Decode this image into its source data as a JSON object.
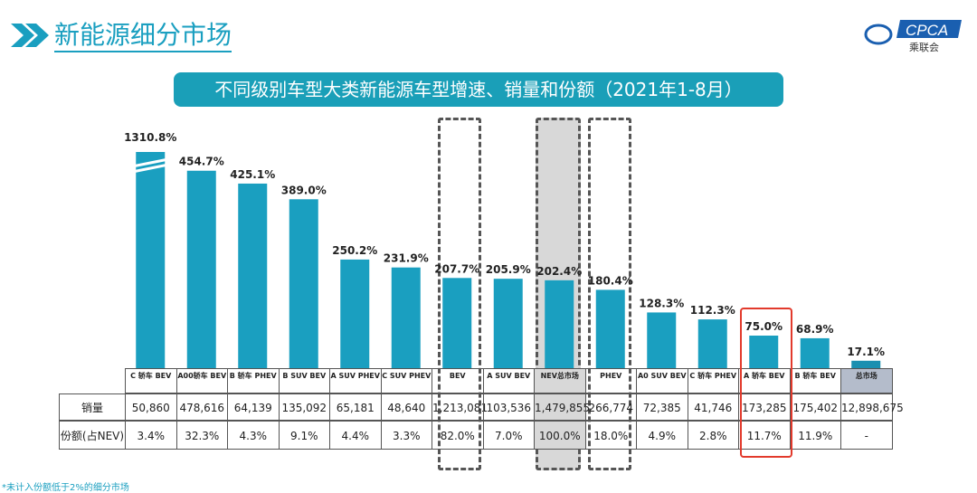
{
  "header": {
    "title": "新能源细分市场",
    "logo_text": "CPCA",
    "logo_sub": "乘联会"
  },
  "chart_data": {
    "type": "bar",
    "title": "不同级别车型大类新能源车型增速、销量和份额（2021年1-8月）",
    "categories": [
      "C 轿车 BEV",
      "A00轿车 BEV",
      "B 轿车 PHEV",
      "B SUV BEV",
      "A SUV PHEV",
      "C SUV PHEV",
      "BEV",
      "A SUV BEV",
      "NEV总市场",
      "PHEV",
      "A0 SUV BEV",
      "C 轿车 PHEV",
      "A 轿车 BEV",
      "B 轿车 BEV",
      "总市场"
    ],
    "values": [
      1310.8,
      454.7,
      425.1,
      389.0,
      250.2,
      231.9,
      207.7,
      205.9,
      202.4,
      180.4,
      128.3,
      112.3,
      75.0,
      68.9,
      17.1
    ],
    "value_labels": [
      "1310.8%",
      "454.7%",
      "425.1%",
      "389.0%",
      "250.2%",
      "231.9%",
      "207.7%",
      "205.9%",
      "202.4%",
      "180.4%",
      "128.3%",
      "112.3%",
      "75.0%",
      "68.9%",
      "17.1%"
    ],
    "broken_axis_bars": [
      0
    ],
    "bar_color": "#1a9fc0",
    "highlight_color": "#e23a2c",
    "table": {
      "row_labels": [
        "销量",
        "份额(占NEV)"
      ],
      "sales": [
        "50,860",
        "478,616",
        "64,139",
        "135,092",
        "65,181",
        "48,640",
        "1,213,081",
        "103,536",
        "1,479,855",
        "266,774",
        "72,385",
        "41,746",
        "173,285",
        "175,402",
        "12,898,675"
      ],
      "share": [
        "3.4%",
        "32.3%",
        "4.3%",
        "9.1%",
        "4.4%",
        "3.3%",
        "82.0%",
        "7.0%",
        "100.0%",
        "18.0%",
        "4.9%",
        "2.8%",
        "11.7%",
        "11.9%",
        "-"
      ]
    }
  },
  "footnote": "*未计入份额低于2%的细分市场"
}
